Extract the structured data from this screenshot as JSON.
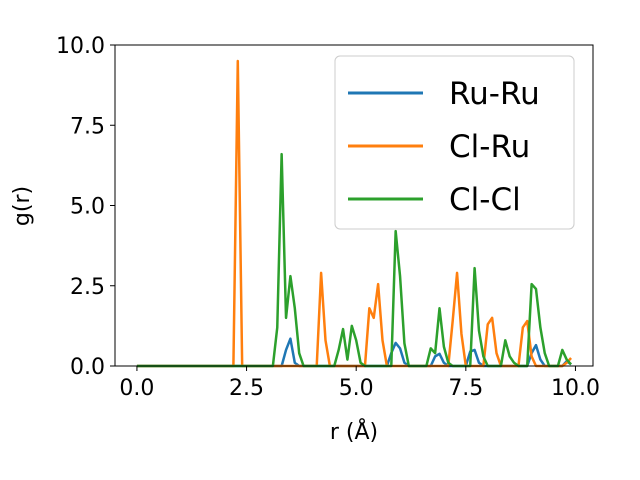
{
  "chart_data": {
    "type": "line",
    "xlabel": "r (Å)",
    "ylabel": "g(r)",
    "xlim": [
      -0.5,
      10.4
    ],
    "ylim": [
      0,
      10
    ],
    "xticks": [
      "0.0",
      "2.5",
      "5.0",
      "7.5",
      "10.0"
    ],
    "yticks": [
      "0.0",
      "2.5",
      "5.0",
      "7.5",
      "10.0"
    ],
    "grid": false,
    "legend_position": "upper-right",
    "series": [
      {
        "name": "Ru-Ru",
        "color": "#1f77b4",
        "points": [
          [
            0.0,
            0
          ],
          [
            3.3,
            0
          ],
          [
            3.4,
            0.5
          ],
          [
            3.5,
            0.85
          ],
          [
            3.6,
            0.1
          ],
          [
            3.7,
            0
          ],
          [
            5.7,
            0
          ],
          [
            5.8,
            0.4
          ],
          [
            5.9,
            0.72
          ],
          [
            6.0,
            0.55
          ],
          [
            6.1,
            0.1
          ],
          [
            6.2,
            0
          ],
          [
            6.7,
            0
          ],
          [
            6.8,
            0.3
          ],
          [
            6.9,
            0.38
          ],
          [
            7.0,
            0.1
          ],
          [
            7.1,
            0
          ],
          [
            7.5,
            0
          ],
          [
            7.6,
            0.45
          ],
          [
            7.7,
            0.5
          ],
          [
            7.8,
            0.1
          ],
          [
            7.9,
            0
          ],
          [
            8.9,
            0
          ],
          [
            9.0,
            0.4
          ],
          [
            9.1,
            0.65
          ],
          [
            9.2,
            0.2
          ],
          [
            9.3,
            0
          ],
          [
            9.7,
            0
          ],
          [
            9.8,
            0.15
          ],
          [
            9.9,
            0.05
          ]
        ]
      },
      {
        "name": "Cl-Ru",
        "color": "#ff7f0e",
        "points": [
          [
            0.0,
            0
          ],
          [
            2.2,
            0
          ],
          [
            2.3,
            9.5
          ],
          [
            2.4,
            0
          ],
          [
            4.1,
            0
          ],
          [
            4.2,
            2.9
          ],
          [
            4.3,
            0.8
          ],
          [
            4.4,
            0
          ],
          [
            5.2,
            0
          ],
          [
            5.3,
            1.8
          ],
          [
            5.4,
            1.5
          ],
          [
            5.5,
            2.55
          ],
          [
            5.6,
            0.8
          ],
          [
            5.7,
            0
          ],
          [
            7.1,
            0
          ],
          [
            7.2,
            1.4
          ],
          [
            7.3,
            2.9
          ],
          [
            7.4,
            1.0
          ],
          [
            7.5,
            0
          ],
          [
            7.9,
            0
          ],
          [
            8.0,
            1.3
          ],
          [
            8.1,
            1.5
          ],
          [
            8.2,
            0.4
          ],
          [
            8.3,
            0
          ],
          [
            8.7,
            0
          ],
          [
            8.8,
            1.2
          ],
          [
            8.9,
            1.4
          ],
          [
            9.0,
            0.3
          ],
          [
            9.1,
            0
          ],
          [
            9.7,
            0
          ],
          [
            9.8,
            0.1
          ],
          [
            9.9,
            0.25
          ]
        ]
      },
      {
        "name": "Cl-Cl",
        "color": "#2ca02c",
        "points": [
          [
            0.0,
            0
          ],
          [
            3.1,
            0
          ],
          [
            3.2,
            1.2
          ],
          [
            3.3,
            6.6
          ],
          [
            3.4,
            1.5
          ],
          [
            3.5,
            2.8
          ],
          [
            3.6,
            1.8
          ],
          [
            3.7,
            0.4
          ],
          [
            3.8,
            0
          ],
          [
            4.5,
            0
          ],
          [
            4.6,
            0.5
          ],
          [
            4.7,
            1.15
          ],
          [
            4.8,
            0.2
          ],
          [
            4.9,
            1.25
          ],
          [
            5.0,
            0.8
          ],
          [
            5.1,
            0.1
          ],
          [
            5.2,
            0
          ],
          [
            5.8,
            0
          ],
          [
            5.9,
            4.2
          ],
          [
            6.0,
            2.8
          ],
          [
            6.1,
            0.7
          ],
          [
            6.2,
            0
          ],
          [
            6.6,
            0
          ],
          [
            6.7,
            0.55
          ],
          [
            6.8,
            0.4
          ],
          [
            6.9,
            1.8
          ],
          [
            7.0,
            0.6
          ],
          [
            7.1,
            0.1
          ],
          [
            7.2,
            0
          ],
          [
            7.6,
            0
          ],
          [
            7.7,
            3.05
          ],
          [
            7.8,
            1.1
          ],
          [
            7.9,
            0.3
          ],
          [
            8.0,
            0
          ],
          [
            8.3,
            0
          ],
          [
            8.4,
            0.8
          ],
          [
            8.5,
            0.3
          ],
          [
            8.6,
            0.1
          ],
          [
            8.7,
            0
          ],
          [
            8.9,
            0
          ],
          [
            9.0,
            2.55
          ],
          [
            9.1,
            2.4
          ],
          [
            9.2,
            1.2
          ],
          [
            9.3,
            0.4
          ],
          [
            9.4,
            0
          ],
          [
            9.6,
            0
          ],
          [
            9.7,
            0.5
          ],
          [
            9.8,
            0.2
          ],
          [
            9.9,
            0.05
          ]
        ]
      }
    ]
  }
}
